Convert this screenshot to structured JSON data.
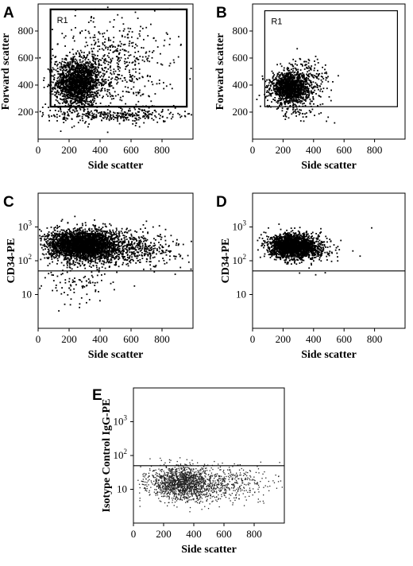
{
  "chart_data": [
    {
      "panel": "A",
      "type": "scatter",
      "xlabel": "Side scatter",
      "ylabel": "Forward scatter",
      "xscale": "linear",
      "yscale": "linear",
      "xlim": [
        0,
        1000
      ],
      "ylim": [
        0,
        1000
      ],
      "x_ticks": [
        "0",
        "200",
        "400",
        "600",
        "800"
      ],
      "y_ticks": [
        "200",
        "400",
        "600",
        "800"
      ],
      "gate": {
        "label": "R1",
        "x": [
          80,
          960
        ],
        "y": [
          240,
          960
        ]
      },
      "clusters": [
        {
          "cx": 250,
          "cy": 420,
          "sx": 70,
          "sy": 85,
          "n": 1700
        },
        {
          "cx": 430,
          "cy": 520,
          "sx": 170,
          "sy": 160,
          "n": 500
        },
        {
          "cx": 500,
          "cy": 180,
          "sx": 280,
          "sy": 25,
          "n": 320
        },
        {
          "cx": 550,
          "cy": 650,
          "sx": 260,
          "sy": 200,
          "n": 160
        }
      ]
    },
    {
      "panel": "B",
      "type": "scatter",
      "xlabel": "Side scatter",
      "ylabel": "Forward scatter",
      "xscale": "linear",
      "yscale": "linear",
      "xlim": [
        0,
        1000
      ],
      "ylim": [
        0,
        1000
      ],
      "x_ticks": [
        "0",
        "200",
        "400",
        "600",
        "800"
      ],
      "y_ticks": [
        "200",
        "400",
        "600",
        "800"
      ],
      "gate": {
        "label": "R1",
        "x": [
          80,
          950
        ],
        "y": [
          240,
          950
        ]
      },
      "clusters": [
        {
          "cx": 240,
          "cy": 380,
          "sx": 60,
          "sy": 55,
          "n": 1300
        },
        {
          "cx": 340,
          "cy": 430,
          "sx": 90,
          "sy": 90,
          "n": 250
        },
        {
          "cx": 300,
          "cy": 200,
          "sx": 100,
          "sy": 30,
          "n": 40
        }
      ]
    },
    {
      "panel": "C",
      "type": "scatter",
      "xlabel": "Side scatter",
      "ylabel": "CD34-PE",
      "xscale": "linear",
      "yscale": "log",
      "xlim": [
        0,
        1000
      ],
      "ylim": [
        1,
        10000
      ],
      "x_ticks": [
        "0",
        "200",
        "400",
        "600",
        "800"
      ],
      "y_ticks": [
        {
          "base": "10",
          "exp": ""
        },
        {
          "base": "10",
          "exp": "2"
        },
        {
          "base": "10",
          "exp": "3"
        }
      ],
      "threshold": 50,
      "clusters": [
        {
          "cx": 280,
          "cy": 2.5,
          "sx": 110,
          "sy": 0.22,
          "n": 2600
        },
        {
          "cx": 520,
          "cy": 2.4,
          "sx": 190,
          "sy": 0.25,
          "n": 800
        },
        {
          "cx": 250,
          "cy": 1.4,
          "sx": 130,
          "sy": 0.35,
          "n": 110
        }
      ]
    },
    {
      "panel": "D",
      "type": "scatter",
      "xlabel": "Side scatter",
      "ylabel": "CD34-PE",
      "xscale": "linear",
      "yscale": "log",
      "xlim": [
        0,
        1000
      ],
      "ylim": [
        1,
        10000
      ],
      "x_ticks": [
        "0",
        "200",
        "400",
        "600",
        "800"
      ],
      "y_ticks": [
        {
          "base": "10",
          "exp": ""
        },
        {
          "base": "10",
          "exp": "2"
        },
        {
          "base": "10",
          "exp": "3"
        }
      ],
      "threshold": 50,
      "clusters": [
        {
          "cx": 250,
          "cy": 2.45,
          "sx": 70,
          "sy": 0.17,
          "n": 1900
        },
        {
          "cx": 380,
          "cy": 2.4,
          "sx": 70,
          "sy": 0.2,
          "n": 300
        },
        {
          "cx": 650,
          "cy": 1.9,
          "sx": 150,
          "sy": 0.5,
          "n": 5
        }
      ]
    },
    {
      "panel": "E",
      "type": "scatter",
      "xlabel": "Side scatter",
      "ylabel": "Isotype Control IgG-PE",
      "xscale": "linear",
      "yscale": "log",
      "xlim": [
        0,
        1000
      ],
      "ylim": [
        1,
        10000
      ],
      "x_ticks": [
        "0",
        "200",
        "400",
        "600",
        "800"
      ],
      "y_ticks": [
        {
          "base": "10",
          "exp": ""
        },
        {
          "base": "10",
          "exp": "2"
        },
        {
          "base": "10",
          "exp": "3"
        }
      ],
      "threshold": 50,
      "clusters": [
        {
          "cx": 320,
          "cy": 1.2,
          "sx": 110,
          "sy": 0.25,
          "n": 1300
        },
        {
          "cx": 550,
          "cy": 1.15,
          "sx": 180,
          "sy": 0.25,
          "n": 450
        },
        {
          "cx": 700,
          "cy": 1.4,
          "sx": 180,
          "sy": 0.2,
          "n": 60
        }
      ]
    }
  ]
}
